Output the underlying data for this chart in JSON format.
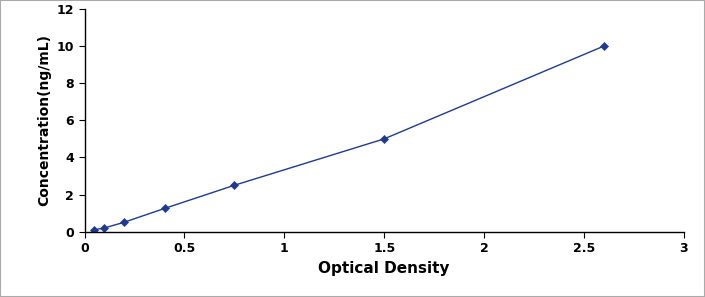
{
  "x_data": [
    0.047,
    0.099,
    0.196,
    0.4,
    0.75,
    1.5,
    2.6
  ],
  "y_data": [
    0.1,
    0.2,
    0.5,
    1.25,
    2.5,
    5.0,
    10.0
  ],
  "line_color": "#1F3A8F",
  "marker_style": "D",
  "marker_size": 4,
  "marker_color": "#1F3A8F",
  "line_style": "-",
  "line_width": 1.0,
  "xlabel": "Optical Density",
  "ylabel": "Concentration(ng/mL)",
  "xlim": [
    0,
    3
  ],
  "ylim": [
    0,
    12
  ],
  "xticks": [
    0,
    0.5,
    1,
    1.5,
    2,
    2.5,
    3
  ],
  "yticks": [
    0,
    2,
    4,
    6,
    8,
    10,
    12
  ],
  "background_color": "#ffffff",
  "axes_bg_color": "#ffffff",
  "border_color": "#000000",
  "xlabel_fontsize": 11,
  "ylabel_fontsize": 10,
  "tick_fontsize": 9,
  "tick_fontweight": "bold",
  "label_fontweight": "bold",
  "fig_border_color": "#aaaaaa",
  "fig_border_linewidth": 1.5
}
